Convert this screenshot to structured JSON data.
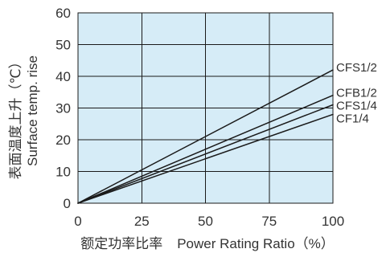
{
  "chart_data": {
    "type": "line",
    "x": [
      0,
      100
    ],
    "series": [
      {
        "name": "CFS1/2",
        "values": [
          0,
          42
        ]
      },
      {
        "name": "CFB1/2",
        "values": [
          0,
          34
        ]
      },
      {
        "name": "CFS1/4",
        "values": [
          0,
          31
        ]
      },
      {
        "name": "CF1/4",
        "values": [
          0,
          28
        ]
      }
    ],
    "xlabel": [
      "额定功率比率",
      "Power Rating Ratio（%）"
    ],
    "ylabel": [
      "表面温度上升（℃）",
      "Surface temp. rise"
    ],
    "xlim": [
      0,
      100
    ],
    "ylim": [
      0,
      60
    ],
    "xticks": [
      0,
      25,
      50,
      75,
      100
    ],
    "yticks": [
      0,
      10,
      20,
      30,
      40,
      50,
      60
    ],
    "grid": true,
    "legend": "right",
    "colors": {
      "plot_background": "#d6ecf7",
      "lines": "#1a1a1a",
      "text": "#333333"
    }
  }
}
